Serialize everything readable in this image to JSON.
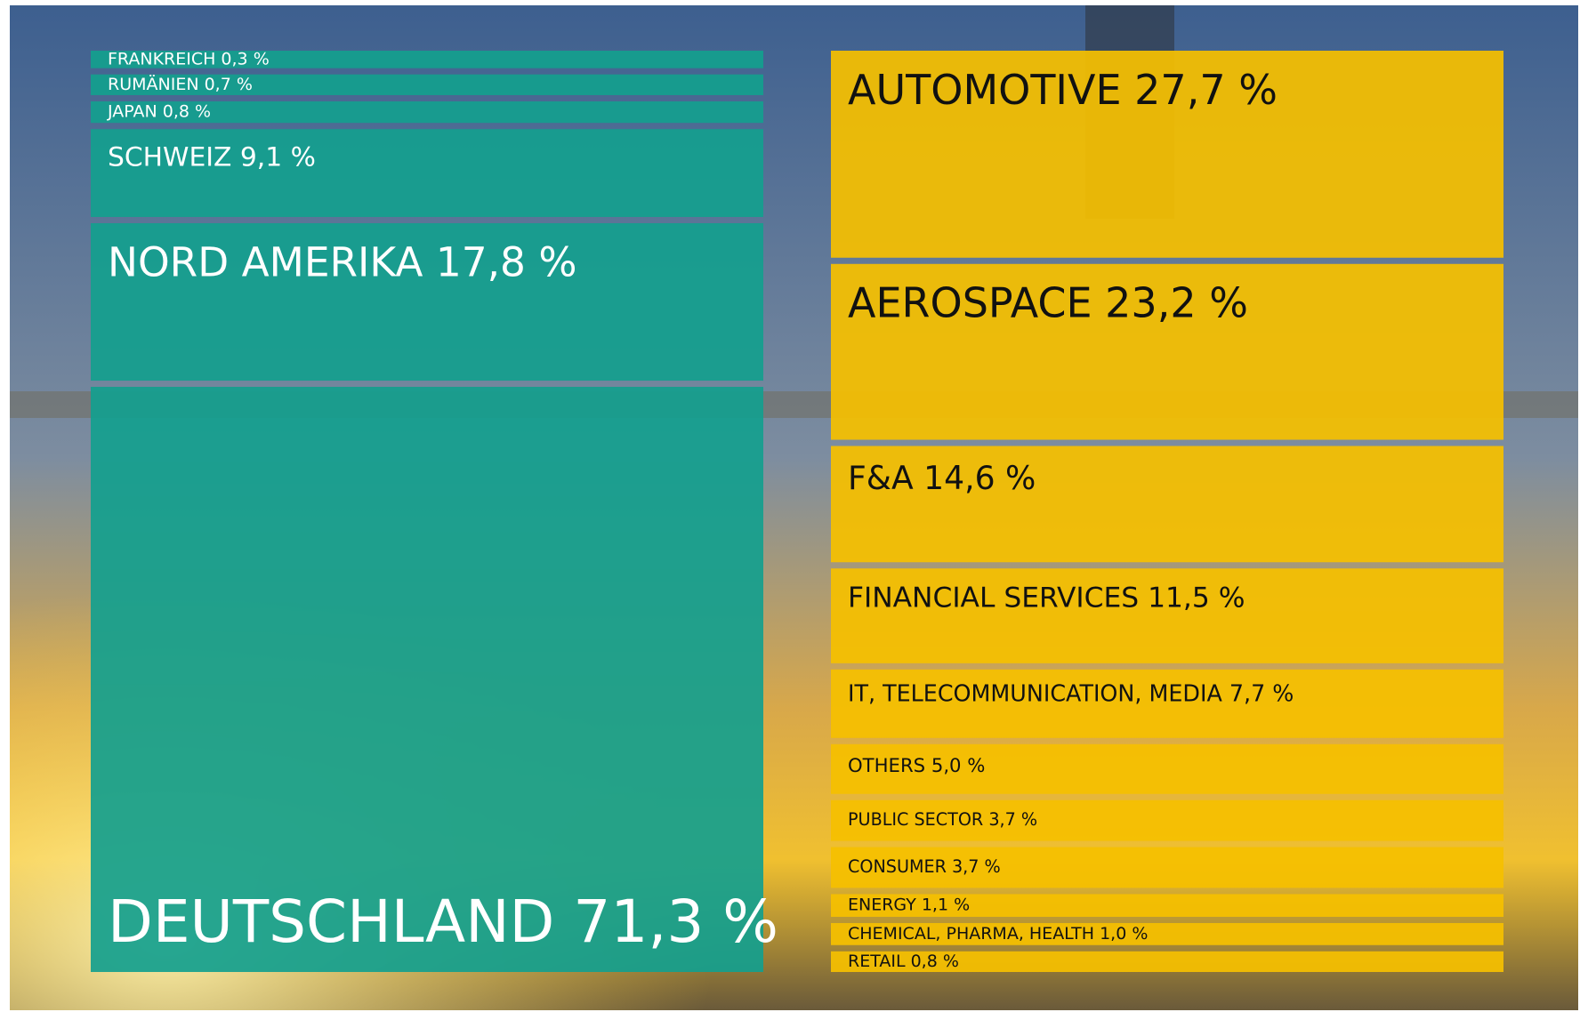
{
  "chart_data": [
    {
      "type": "stacked-column",
      "color": "#13a08e",
      "value_labels": [
        "FRANKREICH 0,3 %",
        "RUMÄNIEN 0,7 %",
        "JAPAN 0,8 %",
        "SCHWEIZ 9,1 %",
        "NORD AMERIKA 17,8 %",
        "DEUTSCHLAND 71,3 %"
      ],
      "values": [
        0.3,
        0.7,
        0.8,
        9.1,
        17.8,
        71.3
      ]
    },
    {
      "type": "stacked-column",
      "color": "#f5c000",
      "value_labels": [
        "AUTOMOTIVE 27,7 %",
        "AEROSPACE 23,2 %",
        "F&A 14,6 %",
        "FINANCIAL SERVICES 11,5 %",
        "IT, TELECOMMUNICATION, MEDIA 7,7 %",
        "OTHERS 5,0 %",
        "PUBLIC SECTOR 3,7 %",
        "CONSUMER 3,7 %",
        "ENERGY 1,1 %",
        "CHEMICAL, PHARMA, HEALTH 1,0 %",
        "RETAIL 0,8 %"
      ],
      "values": [
        27.7,
        23.2,
        14.6,
        11.5,
        7.7,
        5.0,
        3.7,
        3.7,
        1.1,
        1.0,
        0.8
      ]
    }
  ]
}
